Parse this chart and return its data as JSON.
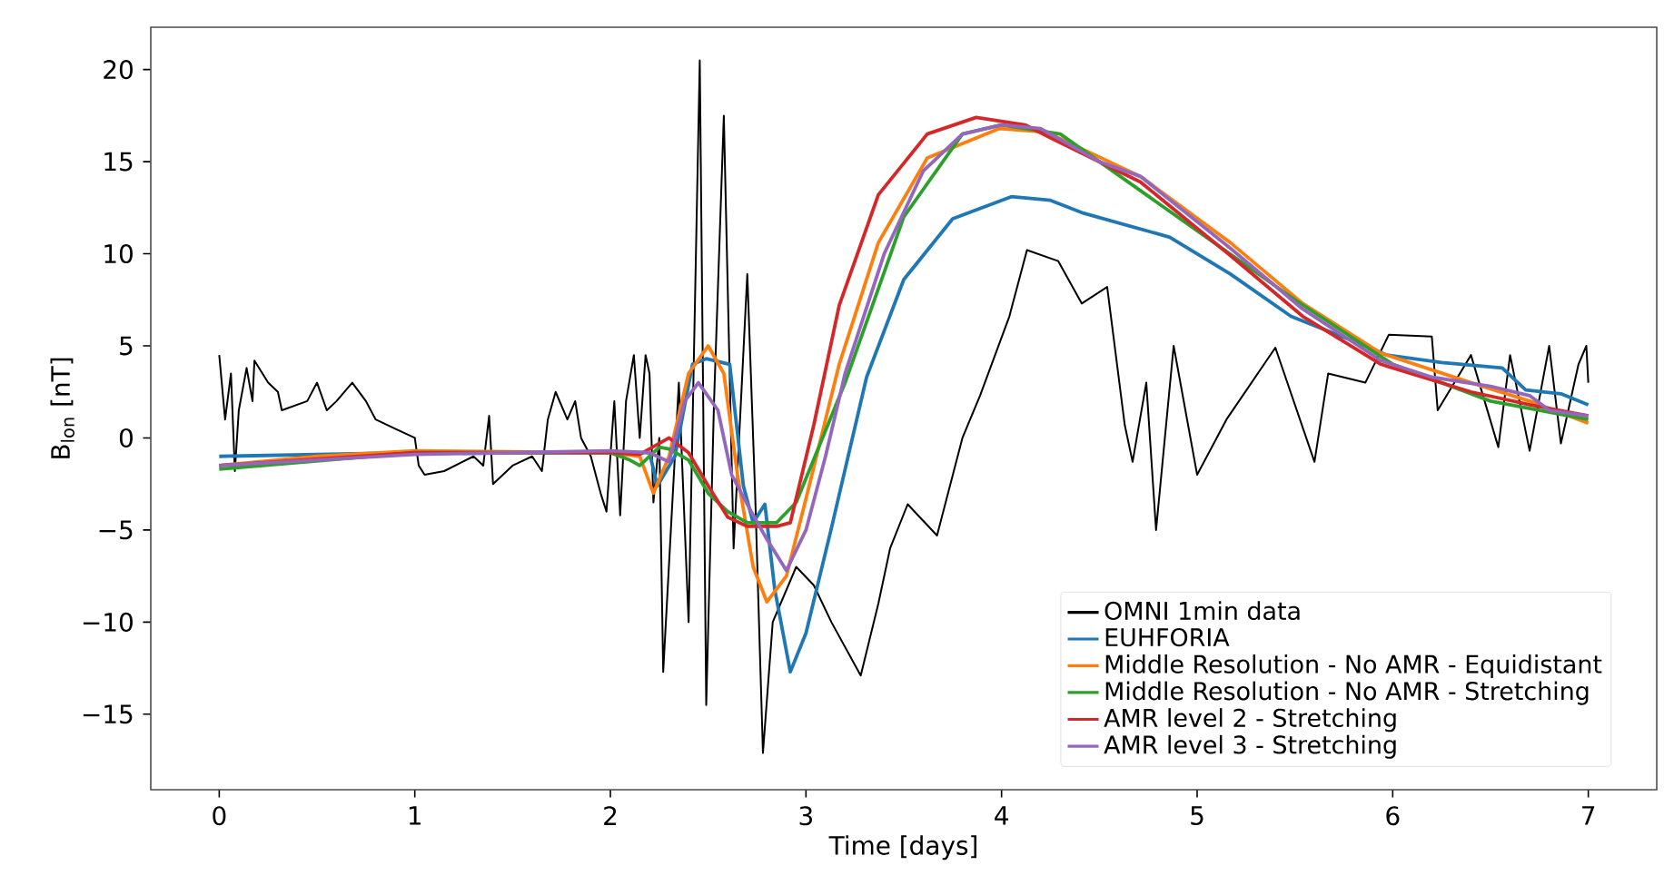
{
  "chart_data": {
    "type": "line",
    "xlabel": "Time [days]",
    "ylabel": "B$_{lon}$ [nT]",
    "xlim": [
      -0.35,
      7.35
    ],
    "ylim": [
      -19.1,
      22.3
    ],
    "xticks": [
      0,
      1,
      2,
      3,
      4,
      5,
      6,
      7
    ],
    "yticks": [
      {
        "value": -15,
        "label": "−15"
      },
      {
        "value": -10,
        "label": "−10"
      },
      {
        "value": -5,
        "label": "−5"
      },
      0,
      5,
      10,
      15,
      20
    ],
    "legend": "bottom right",
    "line_style": "solid",
    "series": [
      {
        "name": "OMNI 1min data",
        "color": "#000000",
        "x": [
          0,
          0.03,
          0.06,
          0.08,
          0.1,
          0.14,
          0.17,
          0.18,
          0.25,
          0.3,
          0.32,
          0.45,
          0.5,
          0.55,
          0.6,
          0.68,
          0.75,
          0.8,
          0.9,
          1.0,
          1.02,
          1.05,
          1.15,
          1.3,
          1.35,
          1.38,
          1.4,
          1.5,
          1.6,
          1.65,
          1.68,
          1.72,
          1.78,
          1.82,
          1.85,
          1.9,
          1.95,
          1.98,
          2.0,
          2.02,
          2.05,
          2.08,
          2.12,
          2.15,
          2.18,
          2.2,
          2.22,
          2.25,
          2.27,
          2.35,
          2.4,
          2.457,
          2.49,
          2.53,
          2.58,
          2.63,
          2.7,
          2.74,
          2.78,
          2.83,
          2.95,
          3.04,
          3.13,
          3.28,
          3.37,
          3.43,
          3.52,
          3.67,
          3.8,
          3.89,
          4.04,
          4.13,
          4.29,
          4.41,
          4.54,
          4.63,
          4.67,
          4.74,
          4.79,
          4.88,
          5.0,
          5.15,
          5.4,
          5.6,
          5.67,
          5.86,
          5.98,
          6.2,
          6.23,
          6.4,
          6.54,
          6.6,
          6.7,
          6.8,
          6.86,
          6.95,
          6.99,
          7.0
        ],
        "values": [
          4.5,
          1,
          3.5,
          -1.8,
          1.5,
          3.8,
          2,
          4.2,
          3,
          2.5,
          1.5,
          2,
          3,
          1.5,
          2,
          3,
          2,
          1,
          0.5,
          0,
          -1.5,
          -2,
          -1.8,
          -1,
          -1.5,
          1.2,
          -2.5,
          -1.5,
          -1,
          -1.8,
          1,
          2.5,
          1,
          2,
          0,
          -1,
          -3,
          -4,
          -1,
          2,
          -4.2,
          2,
          4.5,
          0,
          4.5,
          3.5,
          -3.5,
          0,
          -12.7,
          3,
          -10,
          20.5,
          -14.5,
          2,
          17.5,
          -6,
          8.9,
          -3,
          -17.1,
          -10,
          -7,
          -8,
          -10,
          -12.9,
          -9,
          -6,
          -3.6,
          -5.3,
          0,
          2.3,
          6.6,
          10.2,
          9.6,
          7.3,
          8.2,
          0.7,
          -1.3,
          3,
          -5,
          5,
          -2,
          1,
          4.9,
          -1.3,
          3.5,
          3,
          5.6,
          5.5,
          1.5,
          4.5,
          -0.5,
          4.5,
          -0.7,
          5,
          -0.3,
          4,
          5,
          3
        ]
      },
      {
        "name": "EUHFORIA",
        "color": "#1f77b4",
        "x": [
          0,
          1,
          2,
          2.2,
          2.24,
          2.33,
          2.42,
          2.49,
          2.61,
          2.68,
          2.73,
          2.79,
          2.84,
          2.92,
          3.0,
          3.13,
          3.31,
          3.5,
          3.75,
          4.05,
          4.25,
          4.42,
          4.86,
          5.17,
          5.48,
          5.79,
          5.97,
          6.25,
          6.56,
          6.68,
          6.86,
          7.0
        ],
        "values": [
          -1,
          -0.8,
          -0.8,
          -0.8,
          -2.6,
          -1,
          4,
          4.3,
          4,
          -2.6,
          -4.6,
          -3.6,
          -8.2,
          -12.7,
          -10.6,
          -4.9,
          3.3,
          8.6,
          11.9,
          13.1,
          12.9,
          12.2,
          10.9,
          8.9,
          6.6,
          5.3,
          4.5,
          4.1,
          3.8,
          2.6,
          2.4,
          1.8
        ]
      },
      {
        "name": "Middle Resolution - No AMR - Equidistant",
        "color": "#ff7f0e",
        "x": [
          0,
          0.5,
          1,
          2,
          2.15,
          2.22,
          2.3,
          2.4,
          2.5,
          2.58,
          2.65,
          2.73,
          2.8,
          2.9,
          3.0,
          3.17,
          3.37,
          3.62,
          3.99,
          4.23,
          4.71,
          5.17,
          5.54,
          5.94,
          6.4,
          6.7,
          7.0
        ],
        "values": [
          -1.5,
          -1,
          -0.7,
          -0.8,
          -1,
          -3,
          -1,
          3.5,
          5,
          3.5,
          -2,
          -7,
          -8.9,
          -7.5,
          -3.3,
          4,
          10.6,
          15.2,
          16.8,
          16.6,
          14.2,
          10.6,
          7.3,
          4.6,
          3,
          2,
          0.8
        ]
      },
      {
        "name": "Middle Resolution - No AMR - Stretching",
        "color": "#2ca02c",
        "x": [
          0,
          1,
          2,
          2.1,
          2.15,
          2.25,
          2.3,
          2.4,
          2.5,
          2.6,
          2.7,
          2.85,
          2.95,
          3.2,
          3.5,
          3.8,
          4.0,
          4.3,
          5.5,
          6.0,
          6.5,
          7.0
        ],
        "values": [
          -1.7,
          -0.8,
          -0.8,
          -1.2,
          -1.5,
          -0.5,
          -0.6,
          -1.2,
          -3,
          -4,
          -4.6,
          -4.6,
          -3.5,
          3,
          12,
          16.5,
          17,
          16.5,
          7.5,
          4,
          2,
          1
        ]
      },
      {
        "name": "AMR level 2 - Stretching",
        "color": "#d62728",
        "x": [
          0,
          1,
          2,
          2.15,
          2.3,
          2.4,
          2.5,
          2.6,
          2.7,
          2.85,
          2.92,
          3.04,
          3.17,
          3.37,
          3.62,
          3.87,
          4.12,
          4.25,
          4.71,
          5.17,
          5.54,
          5.94,
          6.4,
          6.7,
          7.0
        ],
        "values": [
          -1.5,
          -0.8,
          -0.8,
          -0.9,
          0,
          -0.8,
          -2.6,
          -4.3,
          -4.8,
          -4.8,
          -4.6,
          0.7,
          7.2,
          13.2,
          16.5,
          17.4,
          17,
          16.3,
          13.9,
          9.9,
          6.6,
          4,
          2.5,
          1.8,
          1.2
        ]
      },
      {
        "name": "AMR level 3 - Stretching",
        "color": "#9467bd",
        "x": [
          0,
          1,
          2,
          2.2,
          2.3,
          2.38,
          2.45,
          2.55,
          2.62,
          2.72,
          2.8,
          2.9,
          3.0,
          3.1,
          3.2,
          3.4,
          3.6,
          3.8,
          4.0,
          4.2,
          4.5,
          4.71,
          5.17,
          5.54,
          5.94,
          6.2,
          6.5,
          6.7,
          6.8,
          7.0
        ],
        "values": [
          -1.5,
          -0.9,
          -0.7,
          -0.8,
          -1.3,
          2,
          3,
          1.5,
          -2,
          -4,
          -5.5,
          -7.2,
          -5,
          -1,
          3.5,
          10,
          14.5,
          16.5,
          17,
          16.8,
          15,
          14.2,
          10.3,
          7,
          4.2,
          3.3,
          2.8,
          2.3,
          1.5,
          1.2
        ]
      }
    ]
  }
}
